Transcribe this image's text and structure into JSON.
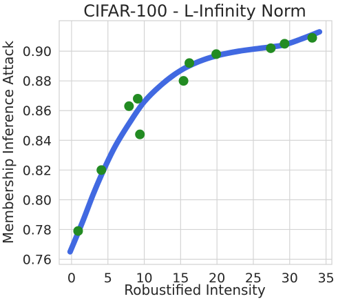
{
  "chart_data": {
    "type": "scatter",
    "title": "CIFAR-100 - L-Infinity Norm",
    "xlabel": "Robustified Intensity",
    "ylabel": "Membership Inference Attack",
    "xlim": [
      -1.7,
      35.8
    ],
    "ylim": [
      0.7565,
      0.9205
    ],
    "xticks": [
      0,
      5,
      10,
      15,
      20,
      25,
      30,
      35
    ],
    "yticks": [
      0.76,
      0.78,
      0.8,
      0.82,
      0.84,
      0.86,
      0.88,
      0.9
    ],
    "xtick_labels": [
      "0",
      "5",
      "10",
      "15",
      "20",
      "25",
      "30",
      "35"
    ],
    "ytick_labels": [
      "0.76",
      "0.78",
      "0.80",
      "0.82",
      "0.84",
      "0.86",
      "0.88",
      "0.90"
    ],
    "grid": true,
    "series": [
      {
        "kind": "points",
        "color": "#228b22",
        "points": [
          {
            "x": 0.9,
            "y": 0.779
          },
          {
            "x": 4.1,
            "y": 0.82
          },
          {
            "x": 7.9,
            "y": 0.863
          },
          {
            "x": 9.1,
            "y": 0.868
          },
          {
            "x": 9.4,
            "y": 0.844
          },
          {
            "x": 15.4,
            "y": 0.88
          },
          {
            "x": 16.2,
            "y": 0.892
          },
          {
            "x": 19.9,
            "y": 0.898
          },
          {
            "x": 27.4,
            "y": 0.902
          },
          {
            "x": 29.3,
            "y": 0.905
          },
          {
            "x": 33.1,
            "y": 0.909
          }
        ]
      },
      {
        "kind": "fit-curve",
        "color": "#4169e1",
        "points": [
          {
            "x": -0.2,
            "y": 0.765
          },
          {
            "x": 1.5,
            "y": 0.785
          },
          {
            "x": 3.0,
            "y": 0.804
          },
          {
            "x": 4.5,
            "y": 0.821
          },
          {
            "x": 6.0,
            "y": 0.836
          },
          {
            "x": 8.0,
            "y": 0.852
          },
          {
            "x": 10.0,
            "y": 0.866
          },
          {
            "x": 12.5,
            "y": 0.878
          },
          {
            "x": 15.0,
            "y": 0.887
          },
          {
            "x": 17.5,
            "y": 0.893
          },
          {
            "x": 20.0,
            "y": 0.897
          },
          {
            "x": 23.0,
            "y": 0.9
          },
          {
            "x": 26.0,
            "y": 0.902
          },
          {
            "x": 29.0,
            "y": 0.904
          },
          {
            "x": 31.5,
            "y": 0.908
          },
          {
            "x": 34.1,
            "y": 0.913
          }
        ]
      }
    ]
  }
}
